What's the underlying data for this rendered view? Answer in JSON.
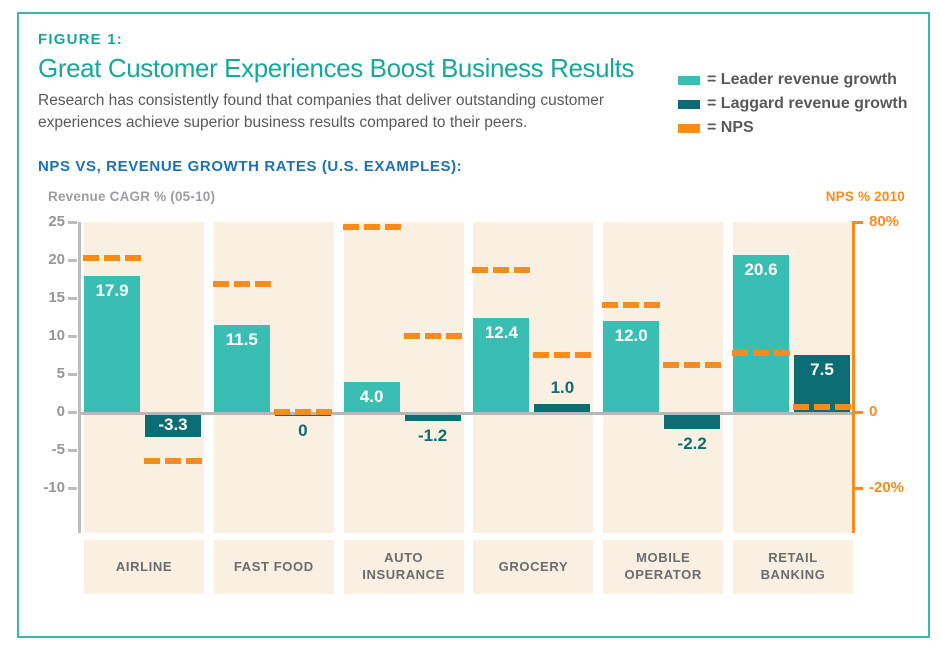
{
  "header": {
    "figure_label": "FIGURE 1:",
    "title": "Great Customer Experiences Boost Business Results",
    "subtitle": "Research has consistently found that companies that deliver outstanding customer experiences achieve superior business results compared to their peers."
  },
  "legend": {
    "items": [
      {
        "label": "= Leader revenue growth",
        "color": "#3ABDB3"
      },
      {
        "label": "= Laggard revenue growth",
        "color": "#0B6C74"
      },
      {
        "label": "= NPS",
        "color": "#F68B1E"
      }
    ]
  },
  "section": {
    "heading": "NPS VS, REVENUE GROWTH RATES (U.S. EXAMPLES):"
  },
  "colors": {
    "leader": "#3ABDB3",
    "laggard": "#0B6C74",
    "nps": "#F68B1E",
    "band": "#FAF0E1",
    "frame_border": "#38B8AF",
    "title_teal": "#17A79B",
    "heading_blue": "#1C72B8",
    "body_text": "#58595B",
    "axis_gray": "#BBBDBF",
    "tick_text": "#949698",
    "category_text": "#6A6C6E",
    "label_inside": "#FFFFFF"
  },
  "chart_data": {
    "type": "bar",
    "title": "NPS VS, REVENUE GROWTH RATES (U.S. EXAMPLES):",
    "categories": [
      "AIRLINE",
      "FAST FOOD",
      "AUTO\nINSURANCE",
      "GROCERY",
      "MOBILE\nOPERATOR",
      "RETAIL\nBANKING"
    ],
    "series": [
      {
        "name": "Leader revenue growth",
        "values": [
          17.9,
          11.5,
          4.0,
          12.4,
          12.0,
          20.6
        ],
        "labels": [
          "17.9",
          "11.5",
          "4.0",
          "12.4",
          "12.0",
          "20.6"
        ],
        "color": "#3ABDB3"
      },
      {
        "name": "Laggard revenue growth",
        "values": [
          -3.3,
          0,
          -1.2,
          1.0,
          -2.2,
          7.5
        ],
        "labels": [
          "-3.3",
          "0",
          "-1.2",
          "1.0",
          "-2.2",
          "7.5"
        ],
        "color": "#0B6C74"
      },
      {
        "name": "NPS",
        "marker": "dashed-line",
        "leader_nps_pct": [
          65,
          54,
          78,
          60,
          45,
          25
        ],
        "laggard_nps_pct": [
          -13,
          0,
          32,
          24,
          20,
          2
        ],
        "color": "#F68B1E"
      }
    ],
    "left_axis": {
      "label": "Revenue CAGR % (05-10)",
      "ticks": [
        25,
        20,
        15,
        10,
        5,
        0,
        -5,
        -10
      ],
      "ylim": [
        -16,
        25
      ]
    },
    "right_axis": {
      "label": "NPS % 2010",
      "ticks": [
        {
          "text": "80%",
          "cagr_unit_position": 25
        },
        {
          "text": "0",
          "cagr_unit_position": 0
        },
        {
          "text": "-20%",
          "cagr_unit_position": -10
        }
      ],
      "scale_note": "0 to 80% spans same height as 0 to 25 CAGR; -20% aligns with -10 CAGR"
    },
    "grid": false,
    "legend_position": "top-right"
  }
}
